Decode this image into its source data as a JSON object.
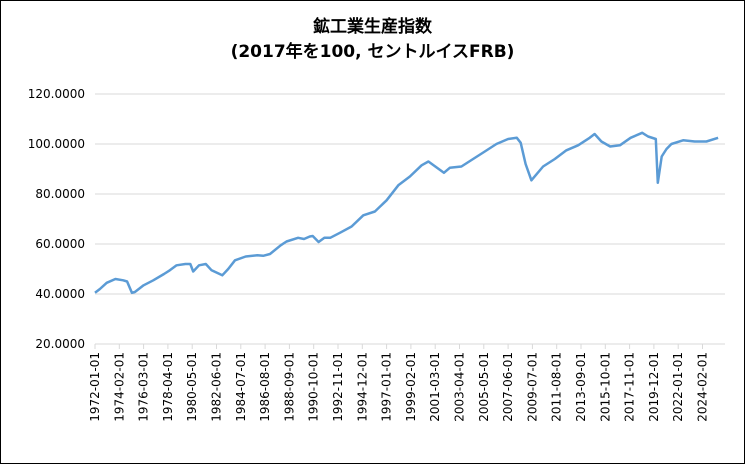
{
  "chart_data": {
    "type": "line",
    "title": "鉱工業生産指数",
    "subtitle": "(2017年を100, セントルイスFRB)",
    "xlabel": "",
    "ylabel": "",
    "ylim": [
      20,
      120
    ],
    "y_ticks": [
      "20.0000",
      "40.0000",
      "60.0000",
      "80.0000",
      "100.0000",
      "120.0000"
    ],
    "x_tick_labels": [
      "1972-01-01",
      "1974-02-01",
      "1976-03-01",
      "1978-04-01",
      "1980-05-01",
      "1982-06-01",
      "1984-07-01",
      "1986-08-01",
      "1988-09-01",
      "1990-10-01",
      "1992-11-01",
      "1994-12-01",
      "1997-01-01",
      "1999-02-01",
      "2001-03-01",
      "2003-04-01",
      "2005-05-01",
      "2007-06-01",
      "2009-07-01",
      "2011-08-01",
      "2013-09-01",
      "2015-10-01",
      "2017-11-01",
      "2019-12-01",
      "2022-01-01",
      "2024-02-01"
    ],
    "grid": true,
    "line_color": "#5b9bd5",
    "series": [
      {
        "x": [
          "1972-01",
          "1972-06",
          "1973-01",
          "1973-10",
          "1974-06",
          "1974-10",
          "1975-03",
          "1975-06",
          "1976-03",
          "1977-01",
          "1977-12",
          "1978-06",
          "1979-01",
          "1979-10",
          "1980-03",
          "1980-06",
          "1980-12",
          "1981-07",
          "1982-01",
          "1982-12",
          "1983-06",
          "1984-01",
          "1984-12",
          "1985-12",
          "1986-06",
          "1987-01",
          "1987-12",
          "1988-06",
          "1989-06",
          "1989-12",
          "1990-06",
          "1990-09",
          "1991-03",
          "1991-09",
          "1992-03",
          "1993-01",
          "1994-01",
          "1995-01",
          "1996-01",
          "1997-01",
          "1998-01",
          "1999-01",
          "2000-01",
          "2000-08",
          "2001-12",
          "2002-06",
          "2003-06",
          "2004-06",
          "2005-06",
          "2006-06",
          "2007-06",
          "2008-03",
          "2008-07",
          "2008-12",
          "2009-06",
          "2010-06",
          "2011-06",
          "2012-06",
          "2013-06",
          "2014-06",
          "2014-11",
          "2015-06",
          "2016-03",
          "2017-01",
          "2017-12",
          "2018-12",
          "2019-06",
          "2020-02",
          "2020-04",
          "2020-08",
          "2021-01",
          "2021-06",
          "2022-06",
          "2023-06",
          "2024-06",
          "2025-06"
        ],
        "values": [
          40.5,
          42,
          44.5,
          46,
          45.5,
          45,
          40.5,
          40.8,
          43.5,
          45.5,
          48,
          49.5,
          51.5,
          52,
          52,
          49,
          51.5,
          52,
          49.5,
          47.5,
          50,
          53.5,
          55,
          55.5,
          55.3,
          56,
          59.5,
          61,
          62.5,
          62,
          63,
          63.2,
          60.8,
          62.5,
          62.5,
          64.5,
          67,
          71.5,
          73,
          77.5,
          83.5,
          87,
          91.5,
          93,
          88.5,
          90.5,
          91,
          94,
          97,
          100,
          102,
          102.5,
          100.5,
          92,
          85.5,
          91,
          94,
          97.5,
          99.5,
          102.5,
          104,
          101,
          99,
          99.5,
          102.5,
          104.5,
          103,
          102,
          84.5,
          95,
          98,
          100,
          101.5,
          101,
          101,
          102.5
        ]
      }
    ]
  }
}
